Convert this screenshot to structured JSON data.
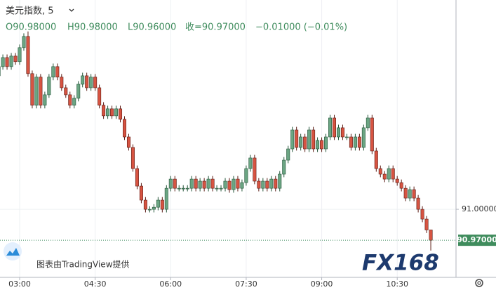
{
  "header": {
    "symbol": "美元指数, 5",
    "open": "O90.98000",
    "high": "H90.98000",
    "low": "L90.96000",
    "close": "收=90.97000",
    "change": "−0.01000 (−0.01%)"
  },
  "attribution": "图表由TradingView提供",
  "watermark": "FX168",
  "chart_data": {
    "type": "candlestick",
    "categories": [
      null,
      null,
      null,
      null,
      null,
      "03:00",
      null,
      null,
      null,
      null,
      null,
      null,
      null,
      null,
      null,
      null,
      null,
      null,
      null,
      null,
      null,
      null,
      null,
      "04:30",
      null,
      null,
      null,
      null,
      null,
      null,
      null,
      null,
      null,
      null,
      null,
      null,
      null,
      null,
      null,
      null,
      null,
      "06:00",
      null,
      null,
      null,
      null,
      null,
      null,
      null,
      null,
      null,
      null,
      null,
      null,
      null,
      null,
      null,
      null,
      null,
      "07:30",
      null,
      null,
      null,
      null,
      null,
      null,
      null,
      null,
      null,
      null,
      null,
      null,
      null,
      null,
      null,
      null,
      null,
      "09:00",
      null,
      null,
      null,
      null,
      null,
      null,
      null,
      null,
      null,
      null,
      null,
      null,
      null,
      null,
      null,
      null,
      null,
      "10:30",
      null,
      null,
      null,
      null,
      null,
      null,
      null,
      null
    ],
    "open": [
      91.1295,
      91.1384,
      91.1472,
      91.1384,
      91.1486,
      91.1432,
      91.1568,
      91.1677,
      91.1316,
      91.1009,
      91.1282,
      91.1009,
      91.1111,
      91.1282,
      91.1384,
      91.1282,
      91.1179,
      91.1111,
      91.1009,
      91.1077,
      91.1213,
      91.1295,
      91.1179,
      91.1282,
      91.1179,
      91.1009,
      91.0907,
      91.0975,
      91.0907,
      91.0975,
      91.0873,
      91.0702,
      91.06,
      91.0395,
      91.0225,
      91.0089,
      91.0,
      91.0,
      91.002,
      91.0089,
      91.0,
      91.0204,
      91.0293,
      91.0204,
      91.0204,
      91.0204,
      91.0204,
      91.0293,
      91.0204,
      91.0273,
      91.0204,
      91.0293,
      91.0204,
      91.0204,
      91.0204,
      91.0273,
      91.0191,
      91.0293,
      91.0204,
      91.0259,
      91.0395,
      91.0498,
      91.0273,
      91.0204,
      91.0273,
      91.0204,
      91.0293,
      91.0204,
      91.0341,
      91.0477,
      91.0586,
      91.077,
      91.06,
      91.0702,
      91.0586,
      91.077,
      91.0586,
      91.0668,
      91.0586,
      91.0702,
      91.0886,
      91.0702,
      91.0791,
      91.0702,
      91.0702,
      91.06,
      91.0702,
      91.06,
      91.0791,
      91.0886,
      91.0566,
      91.0395,
      91.0341,
      91.0293,
      91.0395,
      91.0293,
      91.0259,
      91.0204,
      91.0109,
      91.0191,
      91.0109,
      91.0,
      90.9905,
      90.98
    ],
    "high": [
      91.1414,
      91.1502,
      91.1502,
      91.1516,
      91.1516,
      91.1598,
      91.1707,
      91.1725,
      91.1346,
      91.1312,
      91.1312,
      91.1141,
      91.1312,
      91.1414,
      91.1414,
      91.1312,
      91.1209,
      91.1141,
      91.1107,
      91.1243,
      91.1325,
      91.1325,
      91.1312,
      91.1312,
      91.1209,
      91.1039,
      91.1005,
      91.1005,
      91.1005,
      91.1005,
      91.0903,
      91.0732,
      91.063,
      91.0425,
      91.0255,
      91.0119,
      91.003,
      91.005,
      91.0119,
      91.0119,
      91.0234,
      91.0323,
      91.0323,
      91.0234,
      91.0234,
      91.0234,
      91.0323,
      91.0323,
      91.0303,
      91.0303,
      91.0323,
      91.0323,
      91.0234,
      91.0234,
      91.0303,
      91.0303,
      91.0323,
      91.0323,
      91.0289,
      91.0425,
      91.0528,
      91.0528,
      91.0303,
      91.0303,
      91.0303,
      91.0323,
      91.0323,
      91.0371,
      91.0507,
      91.0616,
      91.08,
      91.08,
      91.0732,
      91.0732,
      91.08,
      91.08,
      91.0698,
      91.0698,
      91.0732,
      91.0916,
      91.0916,
      91.0821,
      91.0821,
      91.0732,
      91.0732,
      91.0732,
      91.0732,
      91.0821,
      91.0916,
      91.0916,
      91.0596,
      91.0425,
      91.0371,
      91.0425,
      91.0425,
      91.0323,
      91.0289,
      91.0234,
      91.0221,
      91.0221,
      91.0139,
      91.003,
      90.9935,
      90.98
    ],
    "low": [
      91.1265,
      91.1354,
      91.1354,
      91.1354,
      91.1402,
      91.1402,
      91.1538,
      91.1286,
      91.0979,
      91.0979,
      91.0979,
      91.0979,
      91.1081,
      91.1252,
      91.1252,
      91.1149,
      91.1081,
      91.0979,
      91.0979,
      91.1047,
      91.1183,
      91.1149,
      91.1149,
      91.1149,
      91.0979,
      91.0877,
      91.0877,
      91.0877,
      91.0877,
      91.0843,
      91.0672,
      91.057,
      91.0365,
      91.0195,
      91.0059,
      90.997,
      90.997,
      90.997,
      90.999,
      90.997,
      90.997,
      91.0174,
      91.0174,
      91.0174,
      91.0174,
      91.0174,
      91.0174,
      91.0174,
      91.0174,
      91.0174,
      91.0174,
      91.0174,
      91.0174,
      91.0174,
      91.0174,
      91.0161,
      91.0161,
      91.0174,
      91.0174,
      91.0229,
      91.0365,
      91.0243,
      91.0174,
      91.0174,
      91.0174,
      91.0174,
      91.0174,
      91.0174,
      91.0311,
      91.0447,
      91.0556,
      91.057,
      91.057,
      91.0556,
      91.0556,
      91.0556,
      91.0556,
      91.0556,
      91.0556,
      91.0672,
      91.0672,
      91.0672,
      91.0672,
      91.0672,
      91.057,
      91.057,
      91.057,
      91.057,
      91.0761,
      91.0536,
      91.0365,
      91.0311,
      91.0263,
      91.0263,
      91.0263,
      91.0229,
      91.0174,
      91.0079,
      91.0079,
      91.0079,
      90.997,
      90.9875,
      90.977,
      90.96
    ],
    "close": [
      91.1384,
      91.1472,
      91.1384,
      91.1486,
      91.1432,
      91.1568,
      91.1677,
      91.1316,
      91.1009,
      91.1282,
      91.1009,
      91.1111,
      91.1282,
      91.1384,
      91.1282,
      91.1179,
      91.1111,
      91.1009,
      91.1077,
      91.1213,
      91.1295,
      91.1179,
      91.1282,
      91.1179,
      91.1009,
      91.0907,
      91.0975,
      91.0907,
      91.0975,
      91.0873,
      91.0702,
      91.06,
      91.0395,
      91.0225,
      91.0089,
      91.0,
      91.0,
      91.002,
      91.0089,
      91.0,
      91.0204,
      91.0293,
      91.0204,
      91.0204,
      91.0204,
      91.0204,
      91.0293,
      91.0204,
      91.0273,
      91.0204,
      91.0293,
      91.0204,
      91.0204,
      91.0204,
      91.0273,
      91.0191,
      91.0293,
      91.0204,
      91.0259,
      91.0395,
      91.0498,
      91.0273,
      91.0204,
      91.0273,
      91.0204,
      91.0293,
      91.0204,
      91.0341,
      91.0477,
      91.0586,
      91.077,
      91.06,
      91.0702,
      91.0586,
      91.077,
      91.0586,
      91.0668,
      91.0586,
      91.0702,
      91.0886,
      91.0702,
      91.0791,
      91.0702,
      91.0702,
      91.06,
      91.0702,
      91.06,
      91.0791,
      91.0886,
      91.0566,
      91.0395,
      91.0341,
      91.0293,
      91.0395,
      91.0293,
      91.0259,
      91.0204,
      91.0109,
      91.0191,
      91.0109,
      91.0,
      90.9905,
      90.98,
      90.97
    ],
    "up_color": "#6ba583",
    "down_color": "#d75442",
    "ylim": [
      90.934,
      91.203
    ],
    "yticks": [
      {
        "value": 91,
        "label": "91.00000"
      }
    ],
    "last_price": {
      "value": 90.97,
      "label": "90.97000"
    },
    "grid": true
  }
}
